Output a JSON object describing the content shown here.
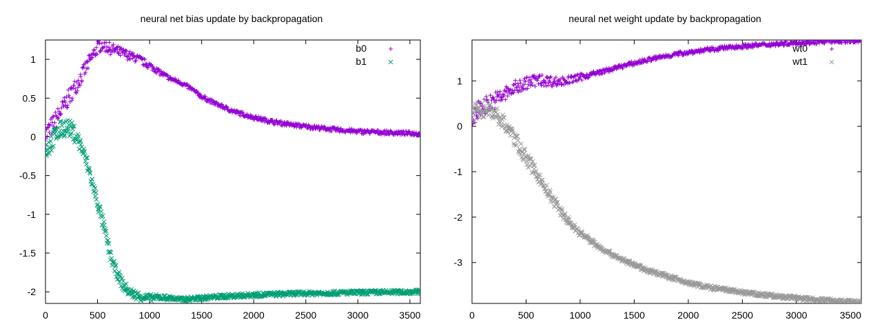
{
  "chart_data": [
    {
      "type": "scatter",
      "title": "neural net bias update by backpropagation",
      "xlabel": "",
      "ylabel": "",
      "xlim": [
        0,
        3600
      ],
      "ylim": [
        -2.15,
        1.25
      ],
      "xticks": [
        0,
        500,
        1000,
        1500,
        2000,
        2500,
        3000,
        3500
      ],
      "yticks": [
        1,
        0.5,
        0,
        -0.5,
        -1,
        -1.5,
        -2
      ],
      "grid": false,
      "legend_position": "top-right",
      "series": [
        {
          "name": "b0",
          "marker": "plus",
          "color": "#9400d3",
          "x": [
            0,
            100,
            200,
            300,
            400,
            500,
            550,
            600,
            700,
            800,
            900,
            1000,
            1100,
            1200,
            1300,
            1400,
            1500,
            1600,
            1800,
            2000,
            2200,
            2400,
            2600,
            2800,
            3000,
            3200,
            3400,
            3600
          ],
          "y": [
            0.02,
            0.22,
            0.45,
            0.68,
            0.92,
            1.15,
            1.2,
            1.15,
            1.1,
            1.05,
            1.0,
            0.92,
            0.83,
            0.75,
            0.7,
            0.62,
            0.52,
            0.45,
            0.33,
            0.25,
            0.19,
            0.15,
            0.12,
            0.09,
            0.07,
            0.06,
            0.05,
            0.04
          ]
        },
        {
          "name": "b1",
          "marker": "cross",
          "color": "#009e73",
          "x": [
            0,
            50,
            100,
            150,
            200,
            250,
            300,
            350,
            400,
            450,
            500,
            550,
            600,
            650,
            700,
            750,
            800,
            900,
            1000,
            1100,
            1200,
            1300,
            1400,
            1500,
            1700,
            2000,
            2500,
            3000,
            3600
          ],
          "y": [
            -0.18,
            -0.08,
            0.02,
            0.1,
            0.13,
            0.09,
            0.0,
            -0.15,
            -0.35,
            -0.6,
            -0.85,
            -1.1,
            -1.4,
            -1.65,
            -1.8,
            -1.92,
            -2.0,
            -2.06,
            -2.08,
            -2.07,
            -2.08,
            -2.1,
            -2.09,
            -2.08,
            -2.06,
            -2.04,
            -2.02,
            -2.01,
            -2.0
          ]
        }
      ]
    },
    {
      "type": "scatter",
      "title": "neural net weight  update by backpropagation",
      "xlabel": "",
      "ylabel": "",
      "xlim": [
        0,
        3600
      ],
      "ylim": [
        -3.9,
        1.9
      ],
      "xticks": [
        0,
        500,
        1000,
        1500,
        2000,
        2500,
        3000,
        3500
      ],
      "yticks": [
        1,
        0,
        -1,
        -2,
        -3
      ],
      "grid": false,
      "legend_position": "top-right",
      "series": [
        {
          "name": "wt0",
          "marker": "plus",
          "color": "#9400d3",
          "x": [
            0,
            100,
            200,
            300,
            400,
            500,
            600,
            700,
            800,
            900,
            1000,
            1200,
            1400,
            1600,
            1800,
            2000,
            2200,
            2400,
            2600,
            2800,
            3000,
            3200,
            3400,
            3600
          ],
          "y": [
            0.2,
            0.45,
            0.55,
            0.7,
            0.85,
            0.95,
            1.02,
            1.0,
            0.98,
            1.02,
            1.08,
            1.2,
            1.33,
            1.45,
            1.55,
            1.63,
            1.69,
            1.74,
            1.78,
            1.81,
            1.84,
            1.86,
            1.88,
            1.89
          ]
        },
        {
          "name": "wt1",
          "marker": "cross",
          "color": "#999999",
          "x": [
            0,
            50,
            100,
            150,
            200,
            250,
            300,
            350,
            400,
            450,
            500,
            600,
            700,
            800,
            900,
            1000,
            1200,
            1400,
            1600,
            1800,
            2000,
            2200,
            2400,
            2600,
            2800,
            3000,
            3200,
            3400,
            3600
          ],
          "y": [
            0.2,
            0.35,
            0.4,
            0.38,
            0.3,
            0.2,
            0.05,
            -0.1,
            -0.3,
            -0.5,
            -0.7,
            -1.05,
            -1.45,
            -1.8,
            -2.12,
            -2.35,
            -2.7,
            -2.95,
            -3.15,
            -3.3,
            -3.45,
            -3.55,
            -3.62,
            -3.69,
            -3.74,
            -3.78,
            -3.82,
            -3.85,
            -3.88
          ]
        }
      ]
    }
  ]
}
